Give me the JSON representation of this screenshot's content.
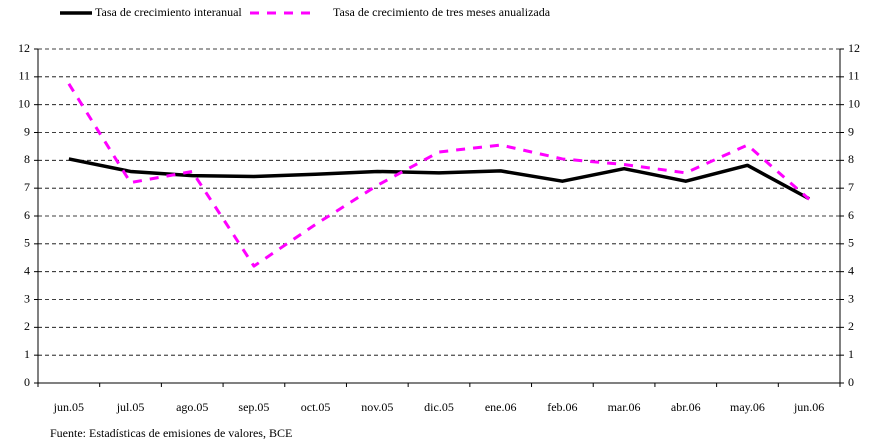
{
  "chart_data": {
    "type": "line",
    "categories": [
      "jun.05",
      "jul.05",
      "ago.05",
      "sep.05",
      "oct.05",
      "nov.05",
      "dic.05",
      "ene.06",
      "feb.06",
      "mar.06",
      "abr.06",
      "may.06",
      "jun.06"
    ],
    "series": [
      {
        "name": "Tasa de crecimiento interanual",
        "color": "#000000",
        "values": [
          8.05,
          7.6,
          7.45,
          7.42,
          7.5,
          7.6,
          7.55,
          7.62,
          7.25,
          7.7,
          7.25,
          7.82,
          6.62
        ]
      },
      {
        "name": "Tasa de crecimiento de tres meses anualizada",
        "color": "#ff00ff",
        "values": [
          10.75,
          7.2,
          7.6,
          4.2,
          5.7,
          7.1,
          8.3,
          8.55,
          8.05,
          7.85,
          7.55,
          8.55,
          6.6
        ]
      }
    ],
    "ylim": [
      0,
      12
    ],
    "yticks": [
      0,
      1,
      2,
      3,
      4,
      5,
      6,
      7,
      8,
      9,
      10,
      11,
      12
    ],
    "y2lim": [
      0,
      12
    ],
    "y2ticks": [
      0,
      1,
      2,
      3,
      4,
      5,
      6,
      7,
      8,
      9,
      10,
      11,
      12
    ],
    "grid": true,
    "source": "Fuente: Estadísticas de emisiones de valores, BCE"
  }
}
